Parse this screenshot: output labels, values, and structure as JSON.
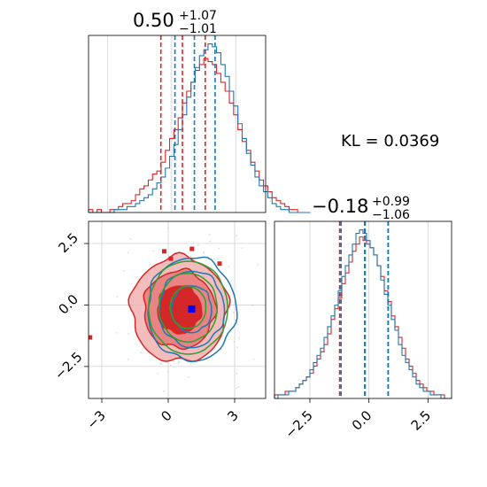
{
  "chart_data": [
    {
      "type": "histogram",
      "panel": "marginal-x",
      "title": {
        "median": "0.50",
        "plus": "+1.07",
        "minus": "−1.01"
      },
      "xlim": [
        -3.9,
        4.4
      ],
      "grid": true,
      "series": [
        {
          "name": "",
          "color": "#d62728",
          "quantiles": [
            -0.51,
            0.5,
            1.57
          ],
          "bin_start": -3.9,
          "bin_width": 0.2,
          "counts": [
            1,
            0,
            1,
            0,
            0,
            1,
            1,
            2,
            3,
            3,
            4,
            6,
            8,
            9,
            11,
            13,
            14,
            17,
            21,
            25,
            28,
            32,
            37,
            41,
            44,
            48,
            50,
            52,
            51,
            50,
            47,
            44,
            41,
            37,
            33,
            28,
            24,
            21,
            17,
            14,
            11,
            9,
            7,
            5,
            4,
            3,
            2,
            1,
            1,
            0,
            0,
            0
          ]
        },
        {
          "name": "",
          "color": "#1f77b4",
          "quantiles": [
            0.15,
            1.06,
            2.03
          ],
          "bin_start": -3.9,
          "bin_width": 0.2,
          "counts": [
            0,
            0,
            0,
            0,
            0,
            0,
            1,
            1,
            1,
            2,
            2,
            3,
            4,
            5,
            6,
            8,
            10,
            12,
            15,
            19,
            23,
            28,
            33,
            39,
            44,
            49,
            53,
            55,
            57,
            56,
            54,
            50,
            46,
            41,
            36,
            30,
            25,
            20,
            16,
            12,
            9,
            7,
            5,
            3,
            2,
            1,
            1,
            0,
            0,
            0,
            0,
            0
          ]
        }
      ]
    },
    {
      "type": "histogram",
      "panel": "marginal-y",
      "title": {
        "median": "−0.18",
        "plus": "+0.99",
        "minus": "−1.06"
      },
      "xlim": [
        -4.0,
        3.5
      ],
      "xticks": [
        "−2.5",
        "0.0",
        "2.5"
      ],
      "grid": true,
      "series": [
        {
          "name": "",
          "color": "#d62728",
          "quantiles": [
            -1.24,
            -0.18,
            0.81
          ],
          "bin_start": -4.0,
          "bin_width": 0.15,
          "counts": [
            1,
            1,
            1,
            2,
            2,
            2,
            3,
            4,
            5,
            6,
            7,
            9,
            11,
            13,
            15,
            18,
            22,
            25,
            28,
            32,
            35,
            38,
            41,
            43,
            45,
            44,
            43,
            42,
            40,
            37,
            34,
            30,
            27,
            23,
            20,
            17,
            14,
            11,
            9,
            7,
            5,
            4,
            3,
            2,
            2,
            1,
            1,
            1,
            0,
            0
          ]
        },
        {
          "name": "",
          "color": "#1f77b4",
          "quantiles": [
            -1.18,
            -0.16,
            0.82
          ],
          "bin_start": -4.0,
          "bin_width": 0.15,
          "counts": [
            0,
            1,
            1,
            1,
            2,
            2,
            3,
            4,
            5,
            6,
            8,
            10,
            12,
            14,
            17,
            20,
            23,
            26,
            30,
            34,
            37,
            40,
            43,
            46,
            47,
            46,
            44,
            42,
            40,
            37,
            33,
            29,
            26,
            22,
            19,
            15,
            12,
            10,
            8,
            6,
            4,
            3,
            2,
            2,
            1,
            1,
            1,
            0,
            0,
            0
          ]
        }
      ]
    },
    {
      "type": "contour",
      "panel": "joint",
      "xlim": [
        -3.6,
        4.4
      ],
      "ylim": [
        -3.8,
        3.4
      ],
      "xticks": [
        "−3",
        "0",
        "3"
      ],
      "yticks": [
        "2.5",
        "0.0",
        "−2.5"
      ],
      "grid": true,
      "series": [
        {
          "name": "",
          "color": "#d62728",
          "center": [
            0.5,
            -0.18
          ],
          "sigma": [
            1.04,
            1.02
          ],
          "filled": true
        },
        {
          "name": "",
          "color": "#1f77b4",
          "center": [
            1.06,
            -0.16
          ],
          "sigma": [
            0.95,
            1.0
          ],
          "filled": false
        },
        {
          "name": "",
          "color": "#2ca02c",
          "center": [
            0.9,
            -0.1
          ],
          "sigma": [
            0.85,
            0.9
          ],
          "filled": false
        }
      ],
      "markers": [
        {
          "color": "#d62728",
          "x": 0.5,
          "y": -0.18
        },
        {
          "color": "#0000ff",
          "x": 1.06,
          "y": -0.16
        }
      ]
    }
  ],
  "annotations": {
    "kl": "KL = 0.0369"
  }
}
